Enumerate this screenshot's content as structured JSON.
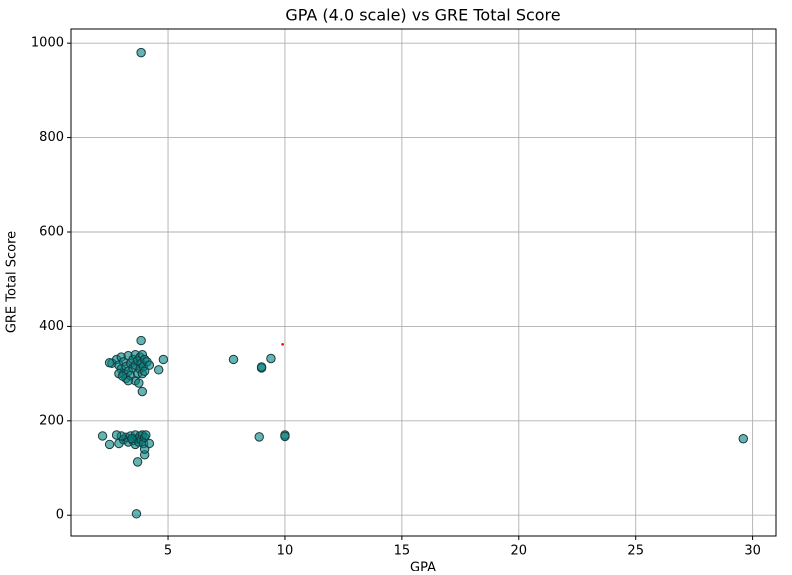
{
  "chart_data": {
    "type": "scatter",
    "title": "GPA (4.0 scale) vs GRE Total Score",
    "xlabel": "GPA",
    "ylabel": "GRE Total Score",
    "xlim": [
      0.85,
      31.0
    ],
    "ylim": [
      -44,
      1030
    ],
    "xticks": [
      5,
      10,
      15,
      20,
      25,
      30
    ],
    "yticks": [
      0,
      200,
      400,
      600,
      800,
      1000
    ],
    "grid": true,
    "series": [
      {
        "color": "#008080",
        "edgecolor": "#1a3a3a",
        "size": 40,
        "x": [
          2.6,
          2.8,
          2.9,
          3.0,
          3.0,
          3.1,
          3.1,
          3.2,
          3.2,
          3.3,
          3.3,
          3.4,
          3.4,
          3.5,
          3.5,
          3.6,
          3.6,
          3.6,
          3.7,
          3.7,
          3.75,
          3.8,
          3.8,
          3.85,
          3.9,
          3.9,
          3.95,
          4.0,
          4.0,
          4.1,
          4.2,
          3.3,
          2.9,
          3.05,
          2.9,
          3.1,
          3.2,
          3.3,
          3.4,
          3.5,
          3.6,
          3.6,
          3.7,
          3.75,
          3.8,
          3.85,
          3.9,
          3.95,
          4.0,
          4.05,
          3.45,
          3.0,
          3.85,
          3.65,
          29.6,
          10.0,
          10.0,
          8.9,
          9.0,
          9.0,
          7.8,
          9.4,
          4.6,
          4.8,
          3.85,
          3.9,
          2.2,
          2.5,
          2.8,
          3.7,
          4.0,
          4.0,
          4.2,
          2.5
        ],
        "y": [
          322,
          330,
          318,
          335,
          310,
          300,
          325,
          290,
          315,
          338,
          305,
          322,
          296,
          330,
          312,
          285,
          340,
          318,
          300,
          328,
          280,
          335,
          310,
          322,
          340,
          300,
          315,
          330,
          305,
          325,
          318,
          285,
          300,
          295,
          152,
          160,
          165,
          155,
          168,
          158,
          170,
          150,
          162,
          155,
          168,
          160,
          170,
          152,
          165,
          170,
          162,
          168,
          980,
          3,
          162,
          170,
          167,
          166,
          312,
          314,
          330,
          332,
          308,
          330,
          370,
          262,
          168,
          150,
          170,
          113,
          128,
          140,
          152,
          323
        ]
      },
      {
        "color": "#ff0000",
        "size": 4,
        "x": [
          9.9
        ],
        "y": [
          362
        ]
      }
    ]
  }
}
